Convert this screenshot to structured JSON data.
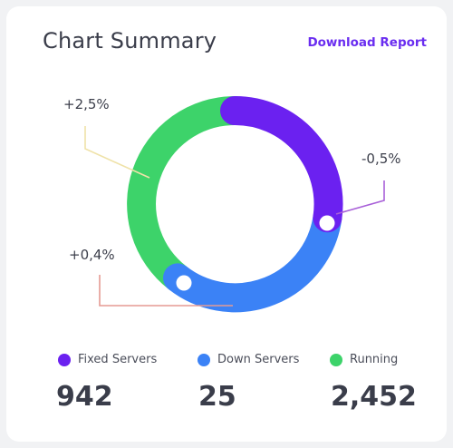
{
  "header": {
    "title": "Chart Summary",
    "download_label": "Download Report"
  },
  "callouts": [
    {
      "label": "+2,5%",
      "color": "#efe2a8"
    },
    {
      "label": "-0,5%",
      "color": "#a860d8"
    },
    {
      "label": "+0,4%",
      "color": "#e59a93"
    }
  ],
  "legend": [
    {
      "label": "Fixed Servers",
      "value": "942",
      "color": "#6b21f0"
    },
    {
      "label": "Down Servers",
      "value": "25",
      "color": "#3b82f6"
    },
    {
      "label": "Running",
      "value": "2,452",
      "color": "#3dd36a"
    }
  ],
  "chart_data": {
    "type": "pie",
    "labels": [
      "Fixed Servers",
      "Down Servers",
      "Running"
    ],
    "values": [
      942,
      25,
      2452
    ],
    "colors": [
      "#6b21f0",
      "#3b82f6",
      "#3dd36a"
    ]
  }
}
